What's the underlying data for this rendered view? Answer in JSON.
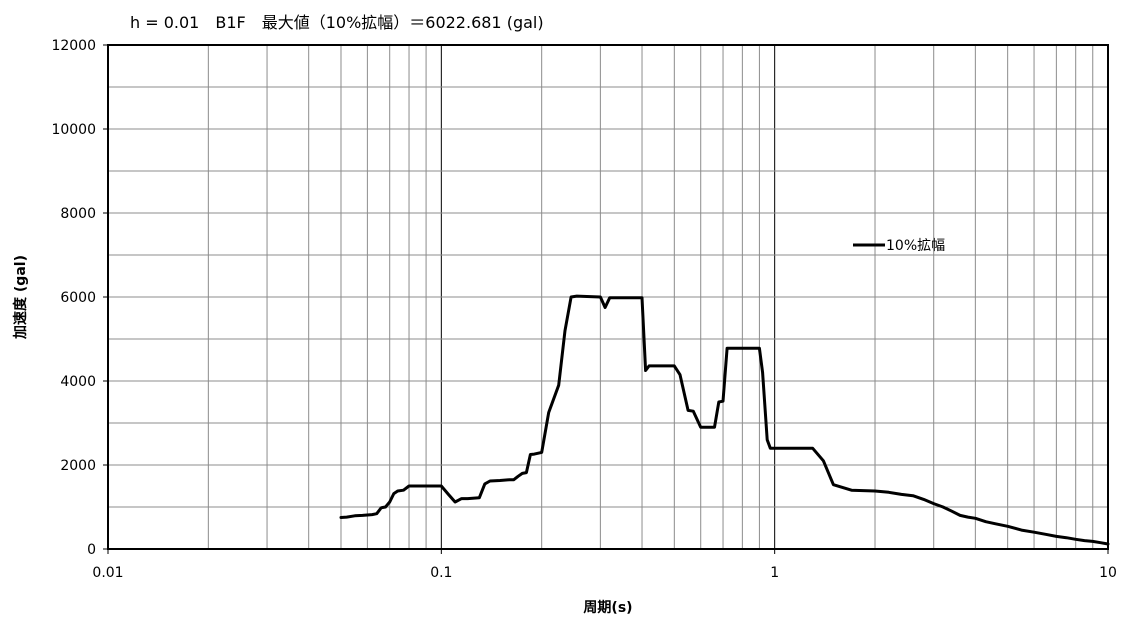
{
  "chart_data": {
    "type": "line",
    "title": "h = 0.01　B1F　最大値（10%拡幅）＝6022.681 (gal)",
    "xlabel": "周期(s)",
    "ylabel": "加速度 (gal)",
    "xscale": "log",
    "xlim": [
      0.01,
      10
    ],
    "ylim": [
      0,
      12000
    ],
    "x_ticks": [
      "0.01",
      "0.1",
      "1",
      "10"
    ],
    "y_ticks": [
      "0",
      "2000",
      "4000",
      "6000",
      "8000",
      "10000",
      "12000"
    ],
    "grid": true,
    "legend_position": "right",
    "series": [
      {
        "name": "10%拡幅",
        "color": "#000000",
        "x": [
          0.05,
          0.052,
          0.055,
          0.058,
          0.062,
          0.064,
          0.066,
          0.068,
          0.07,
          0.072,
          0.074,
          0.077,
          0.08,
          0.085,
          0.09,
          0.095,
          0.1,
          0.105,
          0.11,
          0.115,
          0.12,
          0.13,
          0.135,
          0.14,
          0.15,
          0.16,
          0.165,
          0.17,
          0.175,
          0.18,
          0.185,
          0.19,
          0.2,
          0.21,
          0.225,
          0.235,
          0.245,
          0.255,
          0.3,
          0.31,
          0.32,
          0.4,
          0.41,
          0.42,
          0.43,
          0.5,
          0.52,
          0.55,
          0.57,
          0.6,
          0.62,
          0.66,
          0.68,
          0.7,
          0.72,
          0.74,
          0.9,
          0.92,
          0.95,
          0.97,
          1.0,
          1.3,
          1.4,
          1.5,
          1.7,
          2.0,
          2.2,
          2.4,
          2.6,
          2.8,
          3.0,
          3.2,
          3.4,
          3.6,
          3.8,
          4.0,
          4.3,
          4.6,
          5.0,
          5.5,
          6.0,
          6.5,
          7.0,
          7.5,
          8.0,
          8.5,
          9.0,
          9.5,
          10.0
        ],
        "values": [
          750,
          760,
          790,
          800,
          820,
          840,
          980,
          1000,
          1120,
          1320,
          1380,
          1400,
          1500,
          1500,
          1500,
          1500,
          1500,
          1300,
          1120,
          1200,
          1200,
          1220,
          1550,
          1620,
          1630,
          1650,
          1650,
          1730,
          1800,
          1820,
          2250,
          2260,
          2300,
          3250,
          3900,
          5200,
          6000,
          6022,
          6000,
          5750,
          5980,
          5980,
          4250,
          4360,
          4360,
          4360,
          4150,
          3300,
          3280,
          2900,
          2900,
          2900,
          3500,
          3520,
          4780,
          4780,
          4780,
          4200,
          2600,
          2400,
          2400,
          2400,
          2100,
          1530,
          1400,
          1380,
          1350,
          1300,
          1270,
          1180,
          1080,
          1000,
          900,
          800,
          760,
          730,
          650,
          600,
          540,
          450,
          400,
          350,
          300,
          270,
          230,
          200,
          180,
          150,
          120
        ]
      }
    ]
  }
}
